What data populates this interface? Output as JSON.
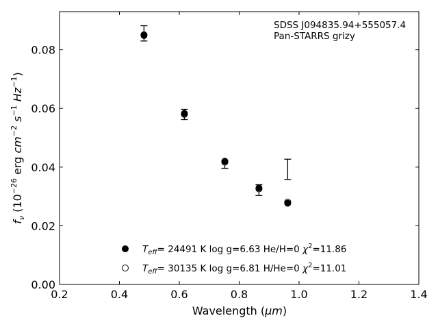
{
  "chart_data": {
    "type": "scatter",
    "xlabel_main": "Wavelength (",
    "xlabel_unit": "μm",
    "xlabel_close": ")",
    "ylabel_f": "f",
    "ylabel_sub": "ν",
    "ylabel_open": " (10",
    "ylabel_exp1": "−26",
    "ylabel_erg": " erg ",
    "ylabel_cm": "cm",
    "ylabel_exp2": "−2",
    "ylabel_s": " s",
    "ylabel_exp3": "−1",
    "ylabel_hz": " Hz",
    "ylabel_exp4": "−1",
    "ylabel_close": ")",
    "xlim": [
      0.2,
      1.4
    ],
    "ylim": [
      0.0,
      0.093
    ],
    "x_ticks": [
      0.2,
      0.4,
      0.6,
      0.8,
      1.0,
      1.2,
      1.4
    ],
    "x_tick_labels": [
      "0.2",
      "0.4",
      "0.6",
      "0.8",
      "1.0",
      "1.2",
      "1.4"
    ],
    "y_ticks": [
      0.0,
      0.02,
      0.04,
      0.06,
      0.08
    ],
    "y_tick_labels": [
      "0.00",
      "0.02",
      "0.04",
      "0.06",
      "0.08"
    ],
    "annotation_line1": "SDSS J094835.94+555057.4",
    "annotation_line2": "Pan-STARRS grizy",
    "grid": false,
    "legend_position": "lower-center",
    "observed": [
      {
        "x": 0.482,
        "y": 0.0855,
        "ylow": 0.083,
        "yhigh": 0.0882
      },
      {
        "x": 0.617,
        "y": 0.058,
        "ylow": 0.0562,
        "yhigh": 0.0597
      },
      {
        "x": 0.752,
        "y": 0.0418,
        "ylow": 0.0396,
        "yhigh": 0.0421
      },
      {
        "x": 0.866,
        "y": 0.0322,
        "ylow": 0.0303,
        "yhigh": 0.034
      },
      {
        "x": 0.962,
        "y": 0.0392,
        "ylow": 0.0358,
        "yhigh": 0.0427
      }
    ],
    "series": [
      {
        "marker": "filled-circle",
        "legend_teff": "T",
        "legend_eff": "eff",
        "legend_rest": "= 24491 K  log g=6.63  He/H=0  ",
        "legend_chi": "χ",
        "legend_chi_exp": "2",
        "legend_chi_val": "=11.86",
        "x": [
          0.482,
          0.617,
          0.752,
          0.866,
          0.962
        ],
        "y": [
          0.0849,
          0.0583,
          0.042,
          0.0329,
          0.0277
        ]
      },
      {
        "marker": "open-circle",
        "legend_teff": "T",
        "legend_eff": "eff",
        "legend_rest": "= 30135 K  log g=6.81  H/He=0  ",
        "legend_chi": "χ",
        "legend_chi_exp": "2",
        "legend_chi_val": "=11.01",
        "x": [
          0.482,
          0.617,
          0.752,
          0.866,
          0.962
        ],
        "y": [
          0.0851,
          0.058,
          0.0417,
          0.0326,
          0.0281
        ]
      }
    ]
  }
}
